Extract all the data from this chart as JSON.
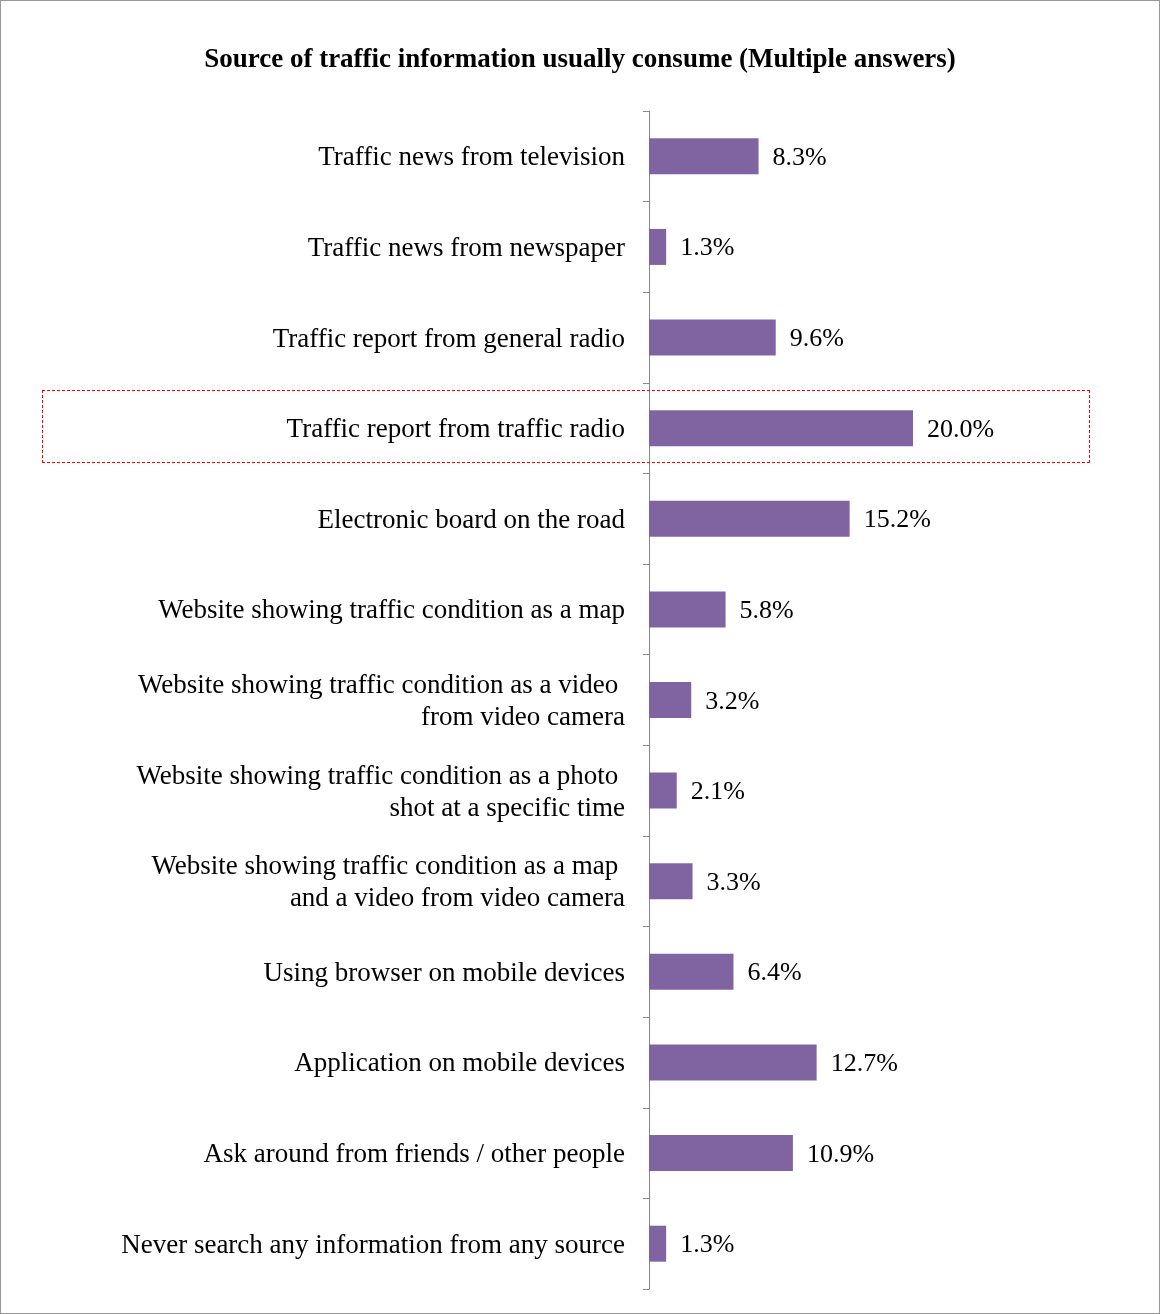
{
  "chart_data": {
    "type": "bar",
    "orientation": "horizontal",
    "title": "Source of traffic information usually consume (Multiple answers)",
    "categories": [
      "Traffic news from television",
      "Traffic news from newspaper",
      "Traffic report from general radio",
      "Traffic report from traffic radio",
      "Electronic board on the road",
      "Website showing traffic condition as a map",
      "Website showing traffic condition as a video from video camera",
      "Website showing traffic condition as a photo shot at a specific time",
      "Website showing traffic condition as a map and a video from video camera",
      "Using browser on mobile devices",
      "Application on mobile devices",
      "Ask around from friends / other people",
      "Never search any information from any source"
    ],
    "values": [
      8.3,
      1.3,
      9.6,
      20.0,
      15.2,
      5.8,
      3.2,
      2.1,
      3.3,
      6.4,
      12.7,
      10.9,
      1.3
    ],
    "value_labels": [
      "8.3%",
      "1.3%",
      "9.6%",
      "20.0%",
      "15.2%",
      "5.8%",
      "3.2%",
      "2.1%",
      "3.3%",
      "6.4%",
      "12.7%",
      "10.9%",
      "1.3%"
    ],
    "color": "#8064a2",
    "tick_labels": "y",
    "grid": false
  }
}
